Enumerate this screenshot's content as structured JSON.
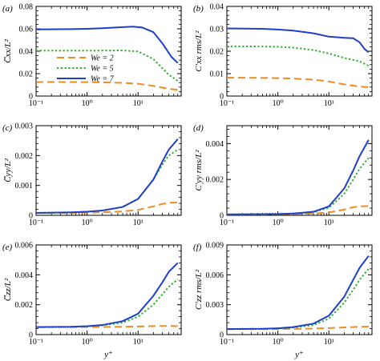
{
  "figure": {
    "x_label_text": "y⁺",
    "legend": {
      "panel": 0,
      "placement": "lower-left",
      "entries": [
        {
          "series": 0,
          "text": "We = 2"
        },
        {
          "series": 1,
          "text": "We = 5"
        },
        {
          "series": 2,
          "text": "We = 7"
        }
      ]
    }
  },
  "chart_data": [
    {
      "type": "line",
      "panel_tag": "(a)",
      "ylabel_text": "C̅xx/L²",
      "xscale": "log",
      "xlim": [
        0.1,
        70
      ],
      "ylim": [
        0,
        0.08
      ],
      "xticks": [
        0.1,
        1,
        10
      ],
      "xtick_labels": [
        "10⁻¹",
        "10⁰",
        "10¹"
      ],
      "yticks": [
        0,
        0.02,
        0.04,
        0.06,
        0.08
      ],
      "ytick_labels": [
        "0",
        "0.02",
        "0.04",
        "0.06",
        "0.08"
      ],
      "series": [
        {
          "color": "#f08c1e",
          "dash": "dashed",
          "x": [
            0.1,
            0.5,
            1,
            2,
            5,
            10,
            20,
            40,
            60
          ],
          "y": [
            0.0125,
            0.0125,
            0.0124,
            0.0122,
            0.0118,
            0.011,
            0.009,
            0.0065,
            0.0055
          ]
        },
        {
          "color": "#2ab02a",
          "dash": "dotted",
          "x": [
            0.1,
            0.5,
            1,
            2,
            5,
            10,
            20,
            40,
            60
          ],
          "y": [
            0.0405,
            0.0405,
            0.0405,
            0.0406,
            0.0407,
            0.0398,
            0.033,
            0.019,
            0.0135
          ]
        },
        {
          "color": "#1f3fc8",
          "dash": "solid",
          "x": [
            0.1,
            0.5,
            1,
            2,
            5,
            8,
            12,
            20,
            30,
            45,
            60
          ],
          "y": [
            0.0595,
            0.0597,
            0.06,
            0.0605,
            0.0615,
            0.062,
            0.0612,
            0.057,
            0.047,
            0.035,
            0.0295
          ]
        }
      ]
    },
    {
      "type": "line",
      "panel_tag": "(b)",
      "ylabel_text": "C′xx rms/L²",
      "xscale": "log",
      "xlim": [
        0.1,
        70
      ],
      "ylim": [
        0,
        0.04
      ],
      "xticks": [
        0.1,
        1,
        10
      ],
      "xtick_labels": [
        "10⁻¹",
        "10⁰",
        "10¹"
      ],
      "yticks": [
        0,
        0.01,
        0.02,
        0.03,
        0.04
      ],
      "ytick_labels": [
        "0",
        "0.01",
        "0.02",
        "0.03",
        "0.04"
      ],
      "series": [
        {
          "color": "#f08c1e",
          "dash": "dashed",
          "x": [
            0.1,
            0.5,
            1,
            2,
            5,
            10,
            20,
            40,
            60
          ],
          "y": [
            0.0082,
            0.0081,
            0.008,
            0.0078,
            0.0073,
            0.0065,
            0.0052,
            0.0042,
            0.004
          ]
        },
        {
          "color": "#2ab02a",
          "dash": "dotted",
          "x": [
            0.1,
            0.5,
            1,
            2,
            5,
            10,
            20,
            40,
            60
          ],
          "y": [
            0.0222,
            0.0221,
            0.022,
            0.0216,
            0.0205,
            0.019,
            0.017,
            0.0155,
            0.0135
          ]
        },
        {
          "color": "#1f3fc8",
          "dash": "solid",
          "x": [
            0.1,
            0.5,
            1,
            2,
            5,
            10,
            20,
            30,
            40,
            50,
            60
          ],
          "y": [
            0.0302,
            0.03,
            0.0297,
            0.0292,
            0.028,
            0.0265,
            0.026,
            0.0258,
            0.024,
            0.021,
            0.0195
          ]
        }
      ]
    },
    {
      "type": "line",
      "panel_tag": "(c)",
      "ylabel_text": "C̅yy/L²",
      "xscale": "log",
      "xlim": [
        0.1,
        70
      ],
      "ylim": [
        0,
        0.003
      ],
      "xticks": [
        0.1,
        1,
        10
      ],
      "xtick_labels": [
        "10⁻¹",
        "10⁰",
        "10¹"
      ],
      "yticks": [
        0,
        0.001,
        0.002,
        0.003
      ],
      "ytick_labels": [
        "0",
        "0.001",
        "0.002",
        "0.003"
      ],
      "series": [
        {
          "color": "#f08c1e",
          "dash": "dashed",
          "x": [
            0.1,
            0.5,
            1,
            2,
            5,
            10,
            20,
            30,
            40,
            60
          ],
          "y": [
            8e-05,
            8e-05,
            9e-05,
            0.0001,
            0.00013,
            0.00018,
            0.0003,
            0.00038,
            0.00042,
            0.00043
          ]
        },
        {
          "color": "#2ab02a",
          "dash": "dotted",
          "x": [
            0.1,
            0.5,
            1,
            2,
            5,
            10,
            20,
            30,
            40,
            60
          ],
          "y": [
            8e-05,
            0.0001,
            0.00012,
            0.00016,
            0.00028,
            0.00055,
            0.0012,
            0.0017,
            0.002,
            0.0022
          ]
        },
        {
          "color": "#1f3fc8",
          "dash": "solid",
          "x": [
            0.1,
            0.5,
            1,
            2,
            5,
            10,
            20,
            30,
            40,
            60
          ],
          "y": [
            8e-05,
            0.0001,
            0.00012,
            0.00016,
            0.00028,
            0.00055,
            0.0012,
            0.0018,
            0.0022,
            0.00255
          ]
        }
      ]
    },
    {
      "type": "line",
      "panel_tag": "(d)",
      "ylabel_text": "C′yy rms/L²",
      "xscale": "log",
      "xlim": [
        0.1,
        70
      ],
      "ylim": [
        0,
        0.005
      ],
      "xticks": [
        0.1,
        1,
        10
      ],
      "xtick_labels": [
        "10⁻¹",
        "10⁰",
        "10¹"
      ],
      "yticks": [
        0,
        0.002,
        0.004
      ],
      "ytick_labels": [
        "0",
        "0.002",
        "0.004"
      ],
      "series": [
        {
          "color": "#f08c1e",
          "dash": "dashed",
          "x": [
            0.1,
            0.5,
            1,
            2,
            5,
            10,
            20,
            30,
            40,
            60
          ],
          "y": [
            5e-05,
            5e-05,
            6e-05,
            7e-05,
            0.0001,
            0.00016,
            0.00032,
            0.00045,
            0.0005,
            0.00052
          ]
        },
        {
          "color": "#2ab02a",
          "dash": "dotted",
          "x": [
            0.1,
            0.5,
            1,
            2,
            5,
            10,
            20,
            30,
            40,
            60
          ],
          "y": [
            5e-05,
            6e-05,
            7e-05,
            0.0001,
            0.00018,
            0.00042,
            0.0012,
            0.002,
            0.0026,
            0.0032
          ]
        },
        {
          "color": "#1f3fc8",
          "dash": "solid",
          "x": [
            0.1,
            0.5,
            1,
            2,
            5,
            10,
            20,
            30,
            40,
            60
          ],
          "y": [
            5e-05,
            6e-05,
            7e-05,
            0.0001,
            0.0002,
            0.0005,
            0.0015,
            0.0025,
            0.0033,
            0.0042
          ]
        }
      ]
    },
    {
      "type": "line",
      "panel_tag": "(e)",
      "ylabel_text": "C̅zz/L²",
      "xscale": "log",
      "xlim": [
        0.1,
        70
      ],
      "ylim": [
        0,
        0.006
      ],
      "xticks": [
        0.1,
        1,
        10
      ],
      "xtick_labels": [
        "10⁻¹",
        "10⁰",
        "10¹"
      ],
      "yticks": [
        0,
        0.002,
        0.004,
        0.006
      ],
      "ytick_labels": [
        "0",
        "0.002",
        "0.004",
        "0.006"
      ],
      "series": [
        {
          "color": "#f08c1e",
          "dash": "dashed",
          "x": [
            0.1,
            0.5,
            1,
            2,
            5,
            10,
            20,
            40,
            60
          ],
          "y": [
            0.0005,
            0.0005,
            0.0005,
            0.00051,
            0.00052,
            0.00054,
            0.00057,
            0.00058,
            0.00056
          ]
        },
        {
          "color": "#2ab02a",
          "dash": "dotted",
          "x": [
            0.1,
            0.5,
            1,
            2,
            5,
            10,
            20,
            30,
            40,
            60
          ],
          "y": [
            0.0005,
            0.00052,
            0.00055,
            0.00062,
            0.0008,
            0.0012,
            0.002,
            0.0027,
            0.0032,
            0.0037
          ]
        },
        {
          "color": "#1f3fc8",
          "dash": "solid",
          "x": [
            0.1,
            0.5,
            1,
            2,
            5,
            10,
            20,
            30,
            40,
            60
          ],
          "y": [
            0.0005,
            0.00052,
            0.00056,
            0.00064,
            0.0009,
            0.0014,
            0.0026,
            0.0035,
            0.0042,
            0.0048
          ]
        }
      ]
    },
    {
      "type": "line",
      "panel_tag": "(f)",
      "ylabel_text": "C′zz rms/L²",
      "xscale": "log",
      "xlim": [
        0.1,
        70
      ],
      "ylim": [
        0,
        0.009
      ],
      "xticks": [
        0.1,
        1,
        10
      ],
      "xtick_labels": [
        "10⁻¹",
        "10⁰",
        "10¹"
      ],
      "yticks": [
        0,
        0.003,
        0.006,
        0.009
      ],
      "ytick_labels": [
        "0",
        "0.003",
        "0.006",
        "0.009"
      ],
      "series": [
        {
          "color": "#f08c1e",
          "dash": "dashed",
          "x": [
            0.1,
            0.5,
            1,
            2,
            5,
            10,
            20,
            40,
            60
          ],
          "y": [
            0.00055,
            0.00055,
            0.00056,
            0.00057,
            0.0006,
            0.00065,
            0.00072,
            0.00078,
            0.0008
          ]
        },
        {
          "color": "#2ab02a",
          "dash": "dotted",
          "x": [
            0.1,
            0.5,
            1,
            2,
            5,
            10,
            20,
            30,
            40,
            60
          ],
          "y": [
            0.00055,
            0.00058,
            0.00062,
            0.0007,
            0.00095,
            0.0016,
            0.0032,
            0.0045,
            0.0055,
            0.0066
          ]
        },
        {
          "color": "#1f3fc8",
          "dash": "solid",
          "x": [
            0.1,
            0.5,
            1,
            2,
            5,
            10,
            20,
            30,
            40,
            60
          ],
          "y": [
            0.00055,
            0.00058,
            0.00063,
            0.00075,
            0.0011,
            0.0019,
            0.0038,
            0.0055,
            0.0067,
            0.0079
          ]
        }
      ]
    }
  ]
}
